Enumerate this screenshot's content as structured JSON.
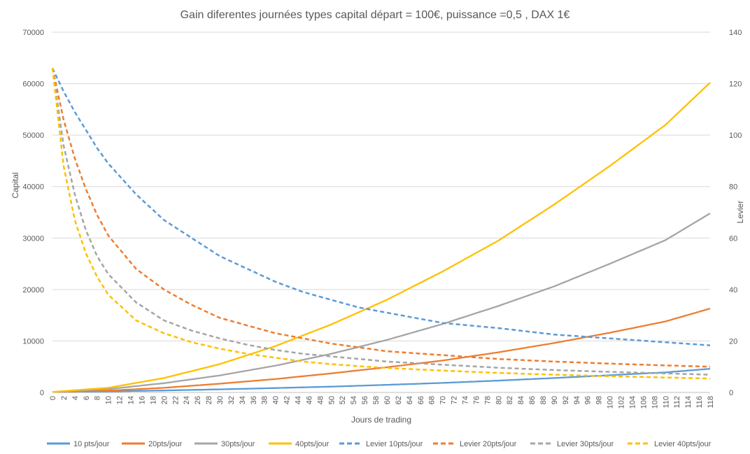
{
  "chart_data": {
    "type": "line",
    "title": "Gain diferentes journées types capital départ = 100€, puissance =0,5 , DAX 1€",
    "xlabel": "Jours de trading",
    "ylabel": "Capital",
    "y2label": "Levier",
    "xlim": [
      0,
      118
    ],
    "x_tick_step": 2,
    "ylim": [
      0,
      70000
    ],
    "y_ticks": [
      0,
      10000,
      20000,
      30000,
      40000,
      50000,
      60000,
      70000
    ],
    "y2lim": [
      0,
      140
    ],
    "y2_ticks": [
      0,
      20,
      40,
      60,
      80,
      100,
      120,
      140
    ],
    "grid": true,
    "legend_position": "bottom",
    "series": [
      {
        "name": "10 pts/jour",
        "color": "#5B9BD5",
        "dash": "solid",
        "axis": "left",
        "points": [
          [
            0,
            100
          ],
          [
            10,
            200
          ],
          [
            20,
            380
          ],
          [
            30,
            600
          ],
          [
            40,
            850
          ],
          [
            50,
            1130
          ],
          [
            60,
            1480
          ],
          [
            70,
            1850
          ],
          [
            80,
            2300
          ],
          [
            90,
            2800
          ],
          [
            100,
            3350
          ],
          [
            110,
            3900
          ],
          [
            118,
            4600
          ]
        ]
      },
      {
        "name": "20pts/jour",
        "color": "#ED7D31",
        "dash": "solid",
        "axis": "left",
        "points": [
          [
            0,
            100
          ],
          [
            10,
            350
          ],
          [
            20,
            900
          ],
          [
            30,
            1700
          ],
          [
            40,
            2600
          ],
          [
            50,
            3700
          ],
          [
            60,
            4900
          ],
          [
            70,
            6200
          ],
          [
            80,
            7800
          ],
          [
            90,
            9600
          ],
          [
            100,
            11600
          ],
          [
            110,
            13800
          ],
          [
            118,
            16300
          ]
        ]
      },
      {
        "name": "30pts/jour",
        "color": "#A5A5A5",
        "dash": "solid",
        "axis": "left",
        "points": [
          [
            0,
            100
          ],
          [
            10,
            650
          ],
          [
            20,
            1800
          ],
          [
            30,
            3300
          ],
          [
            40,
            5200
          ],
          [
            50,
            7500
          ],
          [
            60,
            10200
          ],
          [
            70,
            13300
          ],
          [
            80,
            16800
          ],
          [
            90,
            20600
          ],
          [
            100,
            25000
          ],
          [
            110,
            29600
          ],
          [
            118,
            34800
          ]
        ]
      },
      {
        "name": "40pts/jour",
        "color": "#FFC000",
        "dash": "solid",
        "axis": "left",
        "points": [
          [
            0,
            100
          ],
          [
            10,
            900
          ],
          [
            20,
            2800
          ],
          [
            30,
            5500
          ],
          [
            40,
            9000
          ],
          [
            50,
            13200
          ],
          [
            60,
            18000
          ],
          [
            70,
            23500
          ],
          [
            80,
            29500
          ],
          [
            90,
            36500
          ],
          [
            100,
            44000
          ],
          [
            110,
            52000
          ],
          [
            118,
            60200
          ]
        ]
      },
      {
        "name": "Levier 10pts/jour",
        "color": "#5B9BD5",
        "dash": "dashed",
        "axis": "right",
        "points": [
          [
            0,
            126
          ],
          [
            2,
            117
          ],
          [
            4,
            109
          ],
          [
            6,
            102
          ],
          [
            8,
            95
          ],
          [
            10,
            89
          ],
          [
            15,
            77
          ],
          [
            20,
            67
          ],
          [
            25,
            60
          ],
          [
            30,
            53
          ],
          [
            35,
            48
          ],
          [
            40,
            43
          ],
          [
            45,
            39
          ],
          [
            50,
            36
          ],
          [
            55,
            33
          ],
          [
            60,
            31
          ],
          [
            70,
            27
          ],
          [
            80,
            25
          ],
          [
            90,
            22.5
          ],
          [
            100,
            21
          ],
          [
            110,
            19.5
          ],
          [
            118,
            18.3
          ]
        ]
      },
      {
        "name": "Levier 20pts/jour",
        "color": "#ED7D31",
        "dash": "dashed",
        "axis": "right",
        "points": [
          [
            0,
            126
          ],
          [
            2,
            106
          ],
          [
            4,
            91
          ],
          [
            6,
            79
          ],
          [
            8,
            69
          ],
          [
            10,
            61
          ],
          [
            15,
            48
          ],
          [
            20,
            40
          ],
          [
            25,
            34
          ],
          [
            30,
            29
          ],
          [
            35,
            26
          ],
          [
            40,
            23
          ],
          [
            45,
            21
          ],
          [
            50,
            19
          ],
          [
            55,
            17.5
          ],
          [
            60,
            16
          ],
          [
            70,
            14.5
          ],
          [
            80,
            13
          ],
          [
            90,
            12
          ],
          [
            100,
            11.2
          ],
          [
            110,
            10.5
          ],
          [
            118,
            10
          ]
        ]
      },
      {
        "name": "Levier 30pts/jour",
        "color": "#A5A5A5",
        "dash": "dashed",
        "axis": "right",
        "points": [
          [
            0,
            126
          ],
          [
            2,
            96
          ],
          [
            4,
            77
          ],
          [
            6,
            63
          ],
          [
            8,
            53
          ],
          [
            10,
            46
          ],
          [
            15,
            35
          ],
          [
            20,
            28
          ],
          [
            25,
            24
          ],
          [
            30,
            21
          ],
          [
            35,
            18.5
          ],
          [
            40,
            16.5
          ],
          [
            45,
            15
          ],
          [
            50,
            14
          ],
          [
            55,
            13
          ],
          [
            60,
            12
          ],
          [
            70,
            10.8
          ],
          [
            80,
            9.6
          ],
          [
            90,
            8.7
          ],
          [
            100,
            8
          ],
          [
            110,
            7.4
          ],
          [
            118,
            6.9
          ]
        ]
      },
      {
        "name": "Levier 40pts/jour",
        "color": "#FFC000",
        "dash": "dashed",
        "axis": "right",
        "points": [
          [
            0,
            126
          ],
          [
            2,
            88
          ],
          [
            4,
            67
          ],
          [
            6,
            54
          ],
          [
            8,
            45
          ],
          [
            10,
            38
          ],
          [
            15,
            28
          ],
          [
            20,
            23
          ],
          [
            25,
            19.5
          ],
          [
            30,
            17
          ],
          [
            35,
            15
          ],
          [
            40,
            13.5
          ],
          [
            45,
            12
          ],
          [
            50,
            11
          ],
          [
            55,
            10.2
          ],
          [
            60,
            9.5
          ],
          [
            70,
            8.5
          ],
          [
            80,
            7.6
          ],
          [
            90,
            6.9
          ],
          [
            100,
            6.3
          ],
          [
            110,
            5.8
          ],
          [
            118,
            5.4
          ]
        ]
      }
    ]
  }
}
